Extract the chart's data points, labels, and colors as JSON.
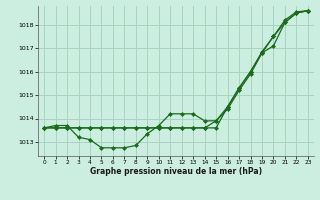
{
  "xlabel": "Graphe pression niveau de la mer (hPa)",
  "bg_color": "#cceee0",
  "grid_color": "#aad4c0",
  "line_color": "#1a6b1a",
  "x": [
    0,
    1,
    2,
    3,
    4,
    5,
    6,
    7,
    8,
    9,
    10,
    11,
    12,
    13,
    14,
    15,
    16,
    17,
    18,
    19,
    20,
    21,
    22,
    23
  ],
  "series1": [
    1013.6,
    1013.7,
    1013.7,
    1013.2,
    1013.1,
    1012.75,
    1012.75,
    1012.75,
    1012.85,
    1013.35,
    1013.7,
    1014.2,
    1014.2,
    1014.2,
    1013.9,
    1013.9,
    1014.4,
    1015.2,
    1015.9,
    1016.8,
    1017.1,
    1018.1,
    1018.5,
    1018.6
  ],
  "series2": [
    1013.6,
    1013.6,
    1013.6,
    1013.6,
    1013.6,
    1013.6,
    1013.6,
    1013.6,
    1013.6,
    1013.6,
    1013.6,
    1013.6,
    1013.6,
    1013.6,
    1013.6,
    1013.9,
    1014.5,
    1015.3,
    1016.0,
    1016.8,
    1017.5,
    1018.1,
    1018.5,
    1018.6
  ],
  "series3": [
    1013.6,
    1013.6,
    1013.6,
    1013.6,
    1013.6,
    1013.6,
    1013.6,
    1013.6,
    1013.6,
    1013.6,
    1013.6,
    1013.6,
    1013.6,
    1013.6,
    1013.6,
    1013.6,
    1014.5,
    1015.3,
    1016.0,
    1016.85,
    1017.5,
    1018.2,
    1018.55,
    1018.6
  ],
  "ylim": [
    1012.4,
    1018.8
  ],
  "yticks": [
    1013,
    1014,
    1015,
    1016,
    1017,
    1018
  ],
  "xticks": [
    0,
    1,
    2,
    3,
    4,
    5,
    6,
    7,
    8,
    9,
    10,
    11,
    12,
    13,
    14,
    15,
    16,
    17,
    18,
    19,
    20,
    21,
    22,
    23
  ],
  "xtick_labels": [
    "0",
    "1",
    "2",
    "3",
    "4",
    "5",
    "6",
    "7",
    "8",
    "9",
    "10",
    "11",
    "12",
    "13",
    "14",
    "15",
    "16",
    "17",
    "18",
    "19",
    "20",
    "21",
    "22",
    "23"
  ]
}
